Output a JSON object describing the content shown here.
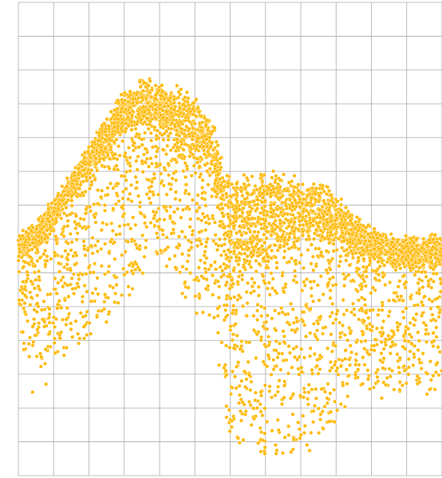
{
  "chart_data": {
    "type": "scatter",
    "title": "",
    "xlabel": "",
    "ylabel": "",
    "xlim": [
      0,
      12
    ],
    "ylim": [
      0,
      14
    ],
    "grid": true,
    "axes_visible": false,
    "marker_color": "#FFB800",
    "marker_edge_color": "#ffffff",
    "grid_color": "#aaaaaa",
    "density_profile": {
      "description_free": true,
      "x": [
        0.0,
        0.5,
        1.0,
        1.5,
        2.0,
        2.5,
        3.0,
        3.5,
        4.0,
        4.5,
        5.0,
        5.5,
        5.8,
        6.0,
        6.5,
        7.0,
        7.5,
        8.0,
        8.5,
        9.0,
        9.5,
        10.0,
        10.5,
        11.0,
        11.5,
        12.0
      ],
      "upper": [
        7.0,
        7.3,
        8.0,
        8.8,
        9.6,
        10.4,
        11.2,
        11.5,
        11.5,
        11.3,
        11.0,
        10.5,
        9.0,
        8.6,
        8.7,
        8.8,
        8.7,
        8.6,
        8.5,
        8.2,
        7.5,
        7.2,
        6.9,
        6.9,
        6.9,
        7.0
      ],
      "core": [
        6.5,
        6.8,
        7.5,
        8.3,
        9.0,
        9.6,
        10.3,
        10.5,
        10.4,
        10.0,
        9.6,
        9.0,
        7.0,
        6.4,
        6.4,
        6.6,
        6.8,
        7.0,
        7.0,
        7.0,
        6.8,
        6.6,
        6.3,
        6.3,
        6.4,
        6.3
      ],
      "lower": [
        4.0,
        3.0,
        3.0,
        3.8,
        4.0,
        4.5,
        5.0,
        6.0,
        6.5,
        5.5,
        5.0,
        4.5,
        2.5,
        1.0,
        0.8,
        0.6,
        0.6,
        0.8,
        1.0,
        1.5,
        2.5,
        2.5,
        2.5,
        2.5,
        2.5,
        2.5
      ]
    }
  }
}
